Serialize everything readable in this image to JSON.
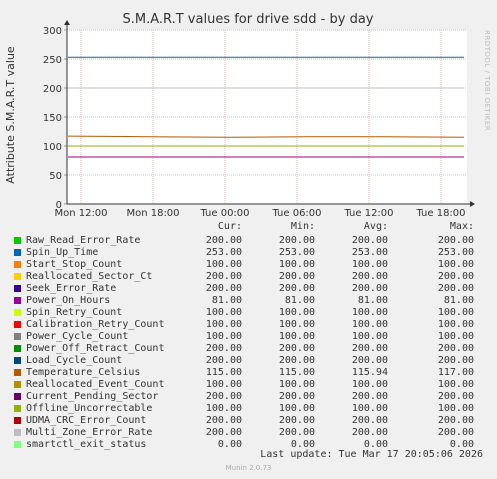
{
  "chart_data": {
    "type": "line",
    "title": "S.M.A.R.T values for drive sdd - by day",
    "ylabel": "Attribute S.M.A.R.T value",
    "xlabel": "",
    "ylim": [
      0,
      300
    ],
    "yticks": [
      "0",
      "50",
      "100",
      "150",
      "200",
      "250",
      "300"
    ],
    "xticks": [
      "Mon 12:00",
      "Mon 18:00",
      "Tue 00:00",
      "Tue 06:00",
      "Tue 12:00",
      "Tue 18:00"
    ],
    "grid": true,
    "legend_headers": [
      "Cur:",
      "Min:",
      "Avg:",
      "Max:"
    ],
    "series": [
      {
        "name": "Raw_Read_Error_Rate",
        "color": "#00cc00",
        "values": [
          200,
          200,
          200,
          200,
          200,
          200
        ],
        "cur": "200.00",
        "min": "200.00",
        "avg": "200.00",
        "max": "200.00"
      },
      {
        "name": "Spin_Up_Time",
        "color": "#0066b3",
        "values": [
          253,
          253,
          253,
          253,
          253,
          253
        ],
        "cur": "253.00",
        "min": "253.00",
        "avg": "253.00",
        "max": "253.00"
      },
      {
        "name": "Start_Stop_Count",
        "color": "#ff8000",
        "values": [
          100,
          100,
          100,
          100,
          100,
          100
        ],
        "cur": "100.00",
        "min": "100.00",
        "avg": "100.00",
        "max": "100.00"
      },
      {
        "name": "Reallocated_Sector_Ct",
        "color": "#ffcc00",
        "values": [
          200,
          200,
          200,
          200,
          200,
          200
        ],
        "cur": "200.00",
        "min": "200.00",
        "avg": "200.00",
        "max": "200.00"
      },
      {
        "name": "Seek_Error_Rate",
        "color": "#330099",
        "values": [
          200,
          200,
          200,
          200,
          200,
          200
        ],
        "cur": "200.00",
        "min": "200.00",
        "avg": "200.00",
        "max": "200.00"
      },
      {
        "name": "Power_On_Hours",
        "color": "#990099",
        "values": [
          81,
          81,
          81,
          81,
          81,
          81
        ],
        "cur": "81.00",
        "min": "81.00",
        "avg": "81.00",
        "max": "81.00"
      },
      {
        "name": "Spin_Retry_Count",
        "color": "#ccff00",
        "values": [
          100,
          100,
          100,
          100,
          100,
          100
        ],
        "cur": "100.00",
        "min": "100.00",
        "avg": "100.00",
        "max": "100.00"
      },
      {
        "name": "Calibration_Retry_Count",
        "color": "#ff0000",
        "values": [
          100,
          100,
          100,
          100,
          100,
          100
        ],
        "cur": "100.00",
        "min": "100.00",
        "avg": "100.00",
        "max": "100.00"
      },
      {
        "name": "Power_Cycle_Count",
        "color": "#808080",
        "values": [
          100,
          100,
          100,
          100,
          100,
          100
        ],
        "cur": "100.00",
        "min": "100.00",
        "avg": "100.00",
        "max": "100.00"
      },
      {
        "name": "Power_Off_Retract_Count",
        "color": "#008f00",
        "values": [
          200,
          200,
          200,
          200,
          200,
          200
        ],
        "cur": "200.00",
        "min": "200.00",
        "avg": "200.00",
        "max": "200.00"
      },
      {
        "name": "Load_Cycle_Count",
        "color": "#00487d",
        "values": [
          200,
          200,
          200,
          200,
          200,
          200
        ],
        "cur": "200.00",
        "min": "200.00",
        "avg": "200.00",
        "max": "200.00"
      },
      {
        "name": "Temperature_Celsius",
        "color": "#b35a00",
        "values": [
          117,
          116,
          115,
          116,
          116,
          115
        ],
        "cur": "115.00",
        "min": "115.00",
        "avg": "115.94",
        "max": "117.00"
      },
      {
        "name": "Reallocated_Event_Count",
        "color": "#b38f00",
        "values": [
          100,
          100,
          100,
          100,
          100,
          100
        ],
        "cur": "100.00",
        "min": "100.00",
        "avg": "100.00",
        "max": "100.00"
      },
      {
        "name": "Current_Pending_Sector",
        "color": "#6b006b",
        "values": [
          200,
          200,
          200,
          200,
          200,
          200
        ],
        "cur": "200.00",
        "min": "200.00",
        "avg": "200.00",
        "max": "200.00"
      },
      {
        "name": "Offline_Uncorrectable",
        "color": "#8fb300",
        "values": [
          100,
          100,
          100,
          100,
          100,
          100
        ],
        "cur": "100.00",
        "min": "100.00",
        "avg": "100.00",
        "max": "100.00"
      },
      {
        "name": "UDMA_CRC_Error_Count",
        "color": "#b30000",
        "values": [
          200,
          200,
          200,
          200,
          200,
          200
        ],
        "cur": "200.00",
        "min": "200.00",
        "avg": "200.00",
        "max": "200.00"
      },
      {
        "name": "Multi_Zone_Error_Rate",
        "color": "#bebebe",
        "values": [
          200,
          200,
          200,
          200,
          200,
          200
        ],
        "cur": "200.00",
        "min": "200.00",
        "avg": "200.00",
        "max": "200.00"
      },
      {
        "name": "smartctl_exit_status",
        "color": "#80ff80",
        "values": [
          0,
          0,
          0,
          0,
          0,
          0
        ],
        "cur": "0.00",
        "min": "0.00",
        "avg": "0.00",
        "max": "0.00"
      }
    ]
  },
  "footer": {
    "last_update": "Last update: Tue Mar 17 20:05:06 2026",
    "munin": "Munin 2.0.73"
  },
  "watermark": "RRDTOOL / TOBI OETIKER"
}
